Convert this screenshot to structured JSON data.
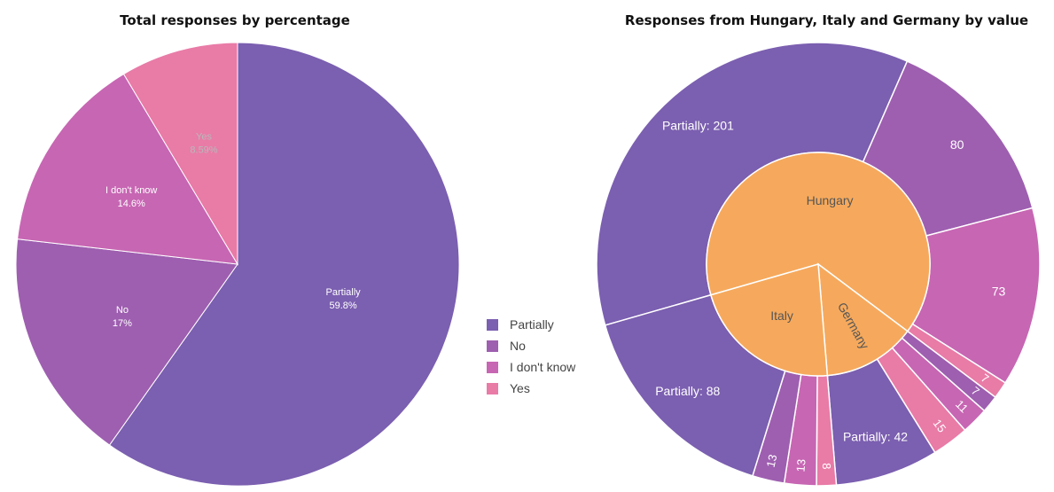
{
  "colors": {
    "Partially": "#7b5fb0",
    "No": "#9e5fb0",
    "I don't know": "#c766b3",
    "Yes": "#e97ba7",
    "Hungary": "#f6a95c",
    "Italy": "#f6a95c",
    "Germany": "#f6a95c"
  },
  "chart_data": [
    {
      "type": "pie",
      "title": "Total responses by percentage",
      "slices": [
        {
          "label": "Partially",
          "value": 59.8,
          "text": "59.8%"
        },
        {
          "label": "No",
          "value": 17.0,
          "text": "17%"
        },
        {
          "label": "I don't know",
          "value": 14.6,
          "text": "14.6%"
        },
        {
          "label": "Yes",
          "value": 8.59,
          "text": "8.59%"
        }
      ],
      "legend": [
        "Partially",
        "No",
        "I don't know",
        "Yes"
      ],
      "legend_position": "right"
    },
    {
      "type": "sunburst",
      "title": "Responses from Hungary, Italy and Germany by value",
      "countries": [
        {
          "name": "Hungary",
          "children": [
            {
              "label": "Partially",
              "value": 201,
              "text": "Partially: 201"
            },
            {
              "label": "No",
              "value": 80,
              "text": "80"
            },
            {
              "label": "I don't know",
              "value": 73,
              "text": "73"
            },
            {
              "label": "Yes",
              "value": 7,
              "text": "7"
            }
          ]
        },
        {
          "name": "Germany",
          "children": [
            {
              "label": "No",
              "value": 7,
              "text": "7"
            },
            {
              "label": "I don't know",
              "value": 11,
              "text": "11"
            },
            {
              "label": "Yes",
              "value": 15,
              "text": "15"
            },
            {
              "label": "Partially",
              "value": 42,
              "text": "Partially: 42"
            }
          ]
        },
        {
          "name": "Italy",
          "children": [
            {
              "label": "Yes",
              "value": 8,
              "text": "8"
            },
            {
              "label": "I don't know",
              "value": 13,
              "text": "13"
            },
            {
              "label": "No",
              "value": 13,
              "text": "13"
            },
            {
              "label": "Partially",
              "value": 88,
              "text": "Partially: 88"
            }
          ]
        }
      ]
    }
  ]
}
